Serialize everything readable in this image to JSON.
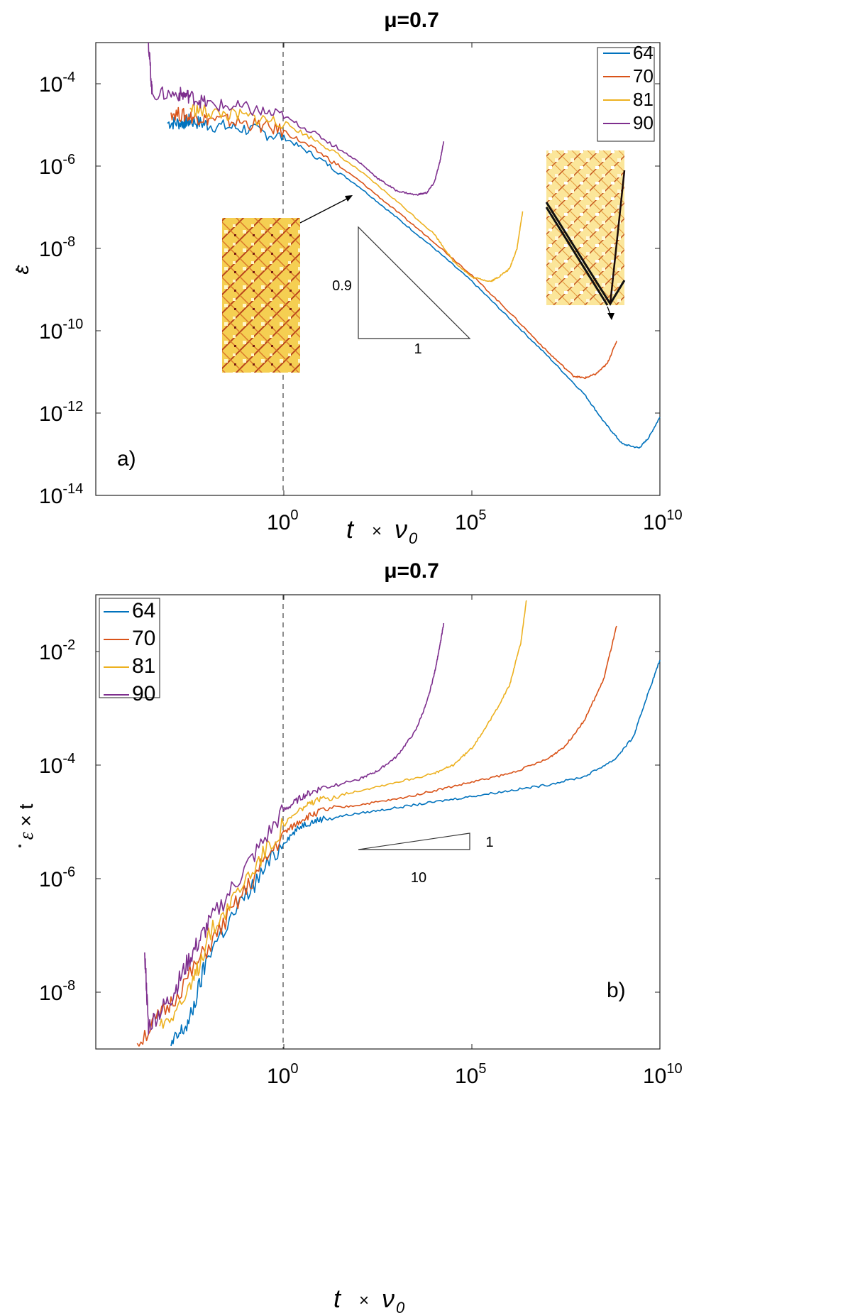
{
  "chart_data": [
    {
      "type": "line",
      "panel": "a)",
      "title": "μ=0.7",
      "xlabel": "t × ν0",
      "ylabel": "ε̇",
      "xscale": "log",
      "yscale": "log",
      "xlim": [
        1e-05,
        10000000000.0
      ],
      "ylim": [
        1e-14,
        0.001
      ],
      "x_ticks": [
        {
          "base": "10",
          "exp": "0"
        },
        {
          "base": "10",
          "exp": "5"
        },
        {
          "base": "10",
          "exp": "10"
        }
      ],
      "y_ticks": [
        {
          "base": "10",
          "exp": "-4"
        },
        {
          "base": "10",
          "exp": "-6"
        },
        {
          "base": "10",
          "exp": "-8"
        },
        {
          "base": "10",
          "exp": "-10"
        },
        {
          "base": "10",
          "exp": "-12"
        },
        {
          "base": "10",
          "exp": "-14"
        }
      ],
      "legend": [
        "64",
        "70",
        "81",
        "90"
      ],
      "slope_triangle": {
        "vertical_label": "0.9",
        "horizontal_label": "1"
      },
      "series": [
        {
          "name": "64",
          "color": "#0072BD",
          "points": [
            [
              -3.1,
              -4.95
            ],
            [
              -2.7,
              -4.95
            ],
            [
              -2.5,
              -4.9
            ],
            [
              -2,
              -5
            ],
            [
              -1,
              -5.1
            ],
            [
              0,
              -5.3
            ],
            [
              1,
              -5.85
            ],
            [
              2,
              -6.5
            ],
            [
              3,
              -7.25
            ],
            [
              4,
              -8.0
            ],
            [
              5,
              -8.8
            ],
            [
              6,
              -9.7
            ],
            [
              7,
              -10.6
            ],
            [
              8,
              -11.55
            ],
            [
              8.5,
              -12.2
            ],
            [
              9,
              -12.75
            ],
            [
              9.45,
              -12.85
            ],
            [
              9.7,
              -12.6
            ],
            [
              10,
              -12.1
            ]
          ]
        },
        {
          "name": "70",
          "color": "#D95319",
          "points": [
            [
              -3,
              -4.7
            ],
            [
              -2.5,
              -4.8
            ],
            [
              -2,
              -4.85
            ],
            [
              -1,
              -4.95
            ],
            [
              0,
              -5.15
            ],
            [
              1,
              -5.7
            ],
            [
              2,
              -6.35
            ],
            [
              3,
              -7.1
            ],
            [
              4,
              -7.85
            ],
            [
              5,
              -8.65
            ],
            [
              6,
              -9.55
            ],
            [
              7,
              -10.5
            ],
            [
              7.7,
              -11.1
            ],
            [
              8,
              -11.15
            ],
            [
              8.3,
              -11.05
            ],
            [
              8.6,
              -10.8
            ],
            [
              8.85,
              -10.25
            ]
          ]
        },
        {
          "name": "81",
          "color": "#EDB120",
          "points": [
            [
              -2.5,
              -4.6
            ],
            [
              -2,
              -4.7
            ],
            [
              -1,
              -4.8
            ],
            [
              0,
              -4.95
            ],
            [
              1,
              -5.45
            ],
            [
              2,
              -6.1
            ],
            [
              3,
              -6.85
            ],
            [
              4,
              -7.65
            ],
            [
              4.5,
              -8.3
            ],
            [
              5,
              -8.7
            ],
            [
              5.5,
              -8.8
            ],
            [
              5.7,
              -8.7
            ],
            [
              6,
              -8.5
            ],
            [
              6.2,
              -8.0
            ],
            [
              6.35,
              -7.1
            ]
          ]
        },
        {
          "name": "90",
          "color": "#7E2F8E",
          "points": [
            [
              -3.6,
              -3.0
            ],
            [
              -3.5,
              -4.25
            ],
            [
              -2.8,
              -4.25
            ],
            [
              -2.5,
              -4.3
            ],
            [
              -2,
              -4.5
            ],
            [
              -1,
              -4.6
            ],
            [
              0,
              -4.8
            ],
            [
              1,
              -5.3
            ],
            [
              2,
              -5.9
            ],
            [
              2.5,
              -6.3
            ],
            [
              3,
              -6.6
            ],
            [
              3.5,
              -6.7
            ],
            [
              3.8,
              -6.65
            ],
            [
              4,
              -6.4
            ],
            [
              4.15,
              -5.9
            ],
            [
              4.25,
              -5.4
            ]
          ]
        }
      ]
    },
    {
      "type": "line",
      "panel": "b)",
      "title": "μ=0.7",
      "xlabel": "t × ν0",
      "ylabel": "ε̇ × t",
      "xscale": "log",
      "yscale": "log",
      "xlim": [
        1e-05,
        10000000000.0
      ],
      "ylim": [
        1e-09,
        0.1
      ],
      "x_ticks": [
        {
          "base": "10",
          "exp": "0"
        },
        {
          "base": "10",
          "exp": "5"
        },
        {
          "base": "10",
          "exp": "10"
        }
      ],
      "y_ticks": [
        {
          "base": "10",
          "exp": "-2"
        },
        {
          "base": "10",
          "exp": "-4"
        },
        {
          "base": "10",
          "exp": "-6"
        },
        {
          "base": "10",
          "exp": "-8"
        }
      ],
      "legend": [
        "64",
        "70",
        "81",
        "90"
      ],
      "slope_triangle": {
        "vertical_label": "1",
        "horizontal_label": "10"
      },
      "series": [
        {
          "name": "64",
          "color": "#0072BD",
          "points": [
            [
              -3,
              -8.95
            ],
            [
              -2.5,
              -8.5
            ],
            [
              -2,
              -7.3
            ],
            [
              -1,
              -6.3
            ],
            [
              0,
              -5.35
            ],
            [
              0.5,
              -5.05
            ],
            [
              1,
              -4.95
            ],
            [
              2,
              -4.85
            ],
            [
              3,
              -4.75
            ],
            [
              4,
              -4.65
            ],
            [
              5,
              -4.55
            ],
            [
              6,
              -4.45
            ],
            [
              7,
              -4.35
            ],
            [
              8,
              -4.2
            ],
            [
              8.8,
              -3.9
            ],
            [
              9.3,
              -3.5
            ],
            [
              9.6,
              -2.9
            ],
            [
              10,
              -2.15
            ]
          ]
        },
        {
          "name": "70",
          "color": "#D95319",
          "points": [
            [
              -3.9,
              -8.9
            ],
            [
              -3,
              -8.2
            ],
            [
              -2,
              -7.2
            ],
            [
              -1,
              -6.2
            ],
            [
              0,
              -5.2
            ],
            [
              0.5,
              -4.95
            ],
            [
              1,
              -4.8
            ],
            [
              2,
              -4.7
            ],
            [
              3,
              -4.6
            ],
            [
              4,
              -4.45
            ],
            [
              5,
              -4.3
            ],
            [
              6,
              -4.15
            ],
            [
              7,
              -3.9
            ],
            [
              7.5,
              -3.65
            ],
            [
              8,
              -3.2
            ],
            [
              8.5,
              -2.5
            ],
            [
              8.85,
              -1.55
            ]
          ]
        },
        {
          "name": "81",
          "color": "#EDB120",
          "points": [
            [
              -3.3,
              -8.6
            ],
            [
              -2.5,
              -8.0
            ],
            [
              -2,
              -7.0
            ],
            [
              -1,
              -6.0
            ],
            [
              0,
              -5.05
            ],
            [
              0.5,
              -4.75
            ],
            [
              1,
              -4.6
            ],
            [
              2,
              -4.45
            ],
            [
              3,
              -4.3
            ],
            [
              4,
              -4.15
            ],
            [
              4.5,
              -4.0
            ],
            [
              5,
              -3.7
            ],
            [
              5.5,
              -3.2
            ],
            [
              6,
              -2.6
            ],
            [
              6.3,
              -1.85
            ],
            [
              6.45,
              -1.1
            ]
          ]
        },
        {
          "name": "90",
          "color": "#7E2F8E",
          "points": [
            [
              -3.7,
              -7.3
            ],
            [
              -3.6,
              -8.6
            ],
            [
              -3,
              -8.1
            ],
            [
              -2.5,
              -7.4
            ],
            [
              -2,
              -6.8
            ],
            [
              -1,
              -5.8
            ],
            [
              0,
              -4.8
            ],
            [
              0.5,
              -4.55
            ],
            [
              1,
              -4.4
            ],
            [
              2,
              -4.25
            ],
            [
              2.5,
              -4.1
            ],
            [
              3,
              -3.85
            ],
            [
              3.5,
              -3.4
            ],
            [
              3.8,
              -2.9
            ],
            [
              4,
              -2.4
            ],
            [
              4.15,
              -1.9
            ],
            [
              4.25,
              -1.5
            ]
          ]
        }
      ]
    }
  ]
}
